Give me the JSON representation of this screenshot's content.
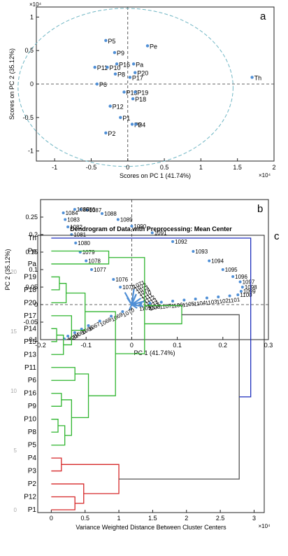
{
  "chart_data": [
    {
      "panel": "a",
      "type": "scatter",
      "title": "",
      "xlabel": "Scores on PC 1 (41.74%)",
      "ylabel": "Scores on PC 2 (35.12%)",
      "x_exponent": "×10⁴",
      "y_exponent": "×10⁴",
      "xlim": [
        -1.25,
        2.0
      ],
      "ylim": [
        -1.15,
        1.15
      ],
      "xticks": [
        -1,
        -0.5,
        0,
        0.5,
        1,
        1.5,
        2
      ],
      "yticks": [
        -1,
        -0.5,
        0,
        0.5,
        1
      ],
      "xtick_labels": [
        "-1",
        "-0.5",
        "0",
        "0.5",
        "1",
        "1.5",
        "2"
      ],
      "ytick_labels": [
        "-1",
        "-0.5",
        "0",
        "0.5",
        "1"
      ],
      "grid": false,
      "confidence_ellipse": {
        "cx": -0.03,
        "cy": -0.05,
        "rx": 1.47,
        "ry": 1.18,
        "color": "#6fb6c4"
      },
      "points": [
        {
          "label": "P5",
          "x": -0.3,
          "y": 0.65
        },
        {
          "label": "Pe",
          "x": 0.27,
          "y": 0.57
        },
        {
          "label": "P9",
          "x": -0.18,
          "y": 0.47
        },
        {
          "label": "P16",
          "x": -0.15,
          "y": 0.3
        },
        {
          "label": "Pa",
          "x": 0.08,
          "y": 0.3
        },
        {
          "label": "P11",
          "x": -0.45,
          "y": 0.25
        },
        {
          "label": "P10",
          "x": -0.28,
          "y": 0.25
        },
        {
          "label": "P8",
          "x": -0.17,
          "y": 0.15
        },
        {
          "label": "P20",
          "x": 0.1,
          "y": 0.17
        },
        {
          "label": "P17",
          "x": 0.03,
          "y": 0.1
        },
        {
          "label": "P6",
          "x": -0.42,
          "y": 0.0
        },
        {
          "label": "Th",
          "x": 1.7,
          "y": 0.1
        },
        {
          "label": "P13",
          "x": -0.05,
          "y": -0.12
        },
        {
          "label": "P19",
          "x": 0.1,
          "y": -0.12
        },
        {
          "label": "P18",
          "x": 0.07,
          "y": -0.22
        },
        {
          "label": "P12",
          "x": -0.24,
          "y": -0.33
        },
        {
          "label": "P1",
          "x": -0.1,
          "y": -0.5
        },
        {
          "label": "P3",
          "x": 0.06,
          "y": -0.6
        },
        {
          "label": "P4",
          "x": 0.11,
          "y": -0.6
        },
        {
          "label": "P2",
          "x": -0.3,
          "y": -0.73
        }
      ],
      "point_color": "#4f8fd6"
    },
    {
      "panel": "b",
      "type": "scatter",
      "title": "",
      "xlabel": "PC 1 (41.74%)",
      "ylabel": "PC 2 (35.12%)",
      "xlim": [
        -0.2,
        0.3
      ],
      "ylim": [
        -0.1,
        0.3
      ],
      "xticks": [
        -0.2,
        -0.1,
        0,
        0.1,
        0.2,
        0.3
      ],
      "yticks": [
        -0.1,
        -0.05,
        0,
        0.05,
        0.1,
        0.15,
        0.2,
        0.25
      ],
      "xtick_labels": [
        "-0.2",
        "-0.1",
        "0",
        "0.1",
        "0.2",
        "0.3"
      ],
      "ytick_labels": [
        "-0.1",
        "-0.05",
        "0",
        "0.05",
        "0.1",
        "0.15",
        "0.2",
        "0.25"
      ],
      "grid": false,
      "point_color": "#4f8fd6",
      "upper_left_arm": [
        {
          "label": "1090",
          "x": 0.0,
          "y": 0.224
        },
        {
          "label": "1089",
          "x": -0.03,
          "y": 0.243
        },
        {
          "label": "1088",
          "x": -0.065,
          "y": 0.26
        },
        {
          "label": "1087",
          "x": -0.098,
          "y": 0.27
        },
        {
          "label": "1086",
          "x": -0.112,
          "y": 0.272
        },
        {
          "label": "1085",
          "x": -0.125,
          "y": 0.272
        },
        {
          "label": "1084",
          "x": -0.15,
          "y": 0.262
        },
        {
          "label": "1083",
          "x": -0.146,
          "y": 0.243
        },
        {
          "label": "1082",
          "x": -0.14,
          "y": 0.222
        },
        {
          "label": "1081",
          "x": -0.132,
          "y": 0.2
        },
        {
          "label": "1080",
          "x": -0.123,
          "y": 0.176
        },
        {
          "label": "1079",
          "x": -0.113,
          "y": 0.15
        },
        {
          "label": "1078",
          "x": -0.1,
          "y": 0.125
        },
        {
          "label": "1077",
          "x": -0.088,
          "y": 0.1
        },
        {
          "label": "1076",
          "x": -0.04,
          "y": 0.072
        },
        {
          "label": "1075",
          "x": -0.025,
          "y": 0.05
        }
      ],
      "upper_right_arm": [
        {
          "label": "1091",
          "x": 0.045,
          "y": 0.205
        },
        {
          "label": "1092",
          "x": 0.09,
          "y": 0.18
        },
        {
          "label": "1093",
          "x": 0.135,
          "y": 0.152
        },
        {
          "label": "1094",
          "x": 0.17,
          "y": 0.125
        },
        {
          "label": "1095",
          "x": 0.2,
          "y": 0.1
        },
        {
          "label": "1096",
          "x": 0.222,
          "y": 0.08
        },
        {
          "label": "1097",
          "x": 0.238,
          "y": 0.065
        },
        {
          "label": "1098",
          "x": 0.243,
          "y": 0.05
        },
        {
          "label": "1099",
          "x": 0.24,
          "y": 0.038
        },
        {
          "label": "1100",
          "x": 0.233,
          "y": 0.028
        }
      ],
      "lower_right_arm": [
        {
          "label": "1101",
          "x": 0.215,
          "y": 0.025
        },
        {
          "label": "1102",
          "x": 0.19,
          "y": 0.022
        },
        {
          "label": "1103",
          "x": 0.165,
          "y": 0.019
        },
        {
          "label": "1104",
          "x": 0.14,
          "y": 0.016
        },
        {
          "label": "1105",
          "x": 0.115,
          "y": 0.013
        },
        {
          "label": "1106",
          "x": 0.09,
          "y": 0.01
        },
        {
          "label": "1107",
          "x": 0.065,
          "y": 0.007
        },
        {
          "label": "1108",
          "x": 0.04,
          "y": 0.004
        },
        {
          "label": "1109",
          "x": 0.02,
          "y": 0.002
        }
      ],
      "lower_left_arm": [
        {
          "label": "1070",
          "x": -0.02,
          "y": -0.02
        },
        {
          "label": "1069",
          "x": -0.045,
          "y": -0.033
        },
        {
          "label": "1068",
          "x": -0.07,
          "y": -0.047
        },
        {
          "label": "1067",
          "x": -0.095,
          "y": -0.06
        },
        {
          "label": "1066",
          "x": -0.11,
          "y": -0.07
        },
        {
          "label": "1065",
          "x": -0.125,
          "y": -0.08
        },
        {
          "label": "1064",
          "x": -0.14,
          "y": -0.09
        },
        {
          "label": "1063",
          "x": -0.148,
          "y": -0.098
        }
      ],
      "cluster_labels": [
        "1071",
        "1072",
        "1073",
        "1074",
        "1110",
        "1111",
        "1112",
        "1113",
        "1114",
        "1115"
      ]
    },
    {
      "panel": "c",
      "type": "dendrogram",
      "title": "Dendrogram of Data with Preprocessing: Mean Center",
      "xlabel": "Variance Weighted Distance Between Cluster Centers",
      "x_exponent": "×10⁴",
      "xlim": [
        -0.2,
        3.15
      ],
      "xticks": [
        0,
        0.5,
        1,
        1.5,
        2,
        2.5,
        3
      ],
      "xtick_labels": [
        "0",
        "0.5",
        "1",
        "1.5",
        "2",
        "2.5",
        "3"
      ],
      "yticks": [
        0,
        5,
        10,
        15,
        20
      ],
      "ytick_labels": [
        "0",
        "5",
        "10",
        "15",
        "20"
      ],
      "leaves": [
        "Th",
        "Pe",
        "Pa",
        "P19",
        "P18",
        "P20",
        "P17",
        "P14",
        "P15",
        "P13",
        "P11",
        "P6",
        "P16",
        "P9",
        "P10",
        "P8",
        "P5",
        "P4",
        "P3",
        "P2",
        "P12",
        "P1"
      ],
      "cluster_colors": {
        "top": "#1f2fbd",
        "green": "#2fb52f",
        "red": "#d62728",
        "root": "#555555"
      }
    }
  ]
}
